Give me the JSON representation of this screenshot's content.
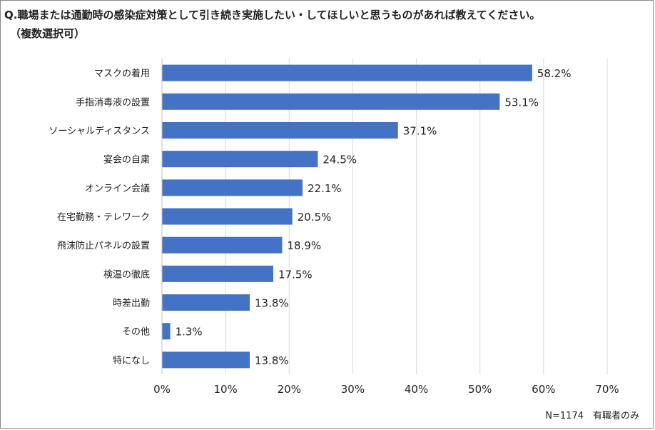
{
  "question": {
    "line1": "Q.職場または通勤時の感染症対策として引き続き実施したい・してほしいと思うものがあれば教えてください。",
    "line2": "（複数選択可）"
  },
  "note": "N=1174　有職者のみ",
  "colors": {
    "bar": "#4472C4",
    "grid": "#d9d9d9",
    "text": "#222222"
  },
  "chart_data": {
    "type": "bar",
    "orientation": "horizontal",
    "categories": [
      "マスクの着用",
      "手指消毒液の設置",
      "ソーシャルディスタンス",
      "宴会の自粛",
      "オンライン会議",
      "在宅勤務・テレワーク",
      "飛沫防止パネルの設置",
      "検温の徹底",
      "時差出勤",
      "その他",
      "特になし"
    ],
    "values": [
      58.2,
      53.1,
      37.1,
      24.5,
      22.1,
      20.5,
      18.9,
      17.5,
      13.8,
      1.3,
      13.8
    ],
    "value_labels": [
      "58.2%",
      "53.1%",
      "37.1%",
      "24.5%",
      "22.1%",
      "20.5%",
      "18.9%",
      "17.5%",
      "13.8%",
      "1.3%",
      "13.8%"
    ],
    "xlim": [
      0,
      70
    ],
    "xticks": [
      0,
      10,
      20,
      30,
      40,
      50,
      60,
      70
    ],
    "xtick_labels": [
      "0%",
      "10%",
      "20%",
      "30%",
      "40%",
      "50%",
      "60%",
      "70%"
    ],
    "grid": "vertical"
  }
}
